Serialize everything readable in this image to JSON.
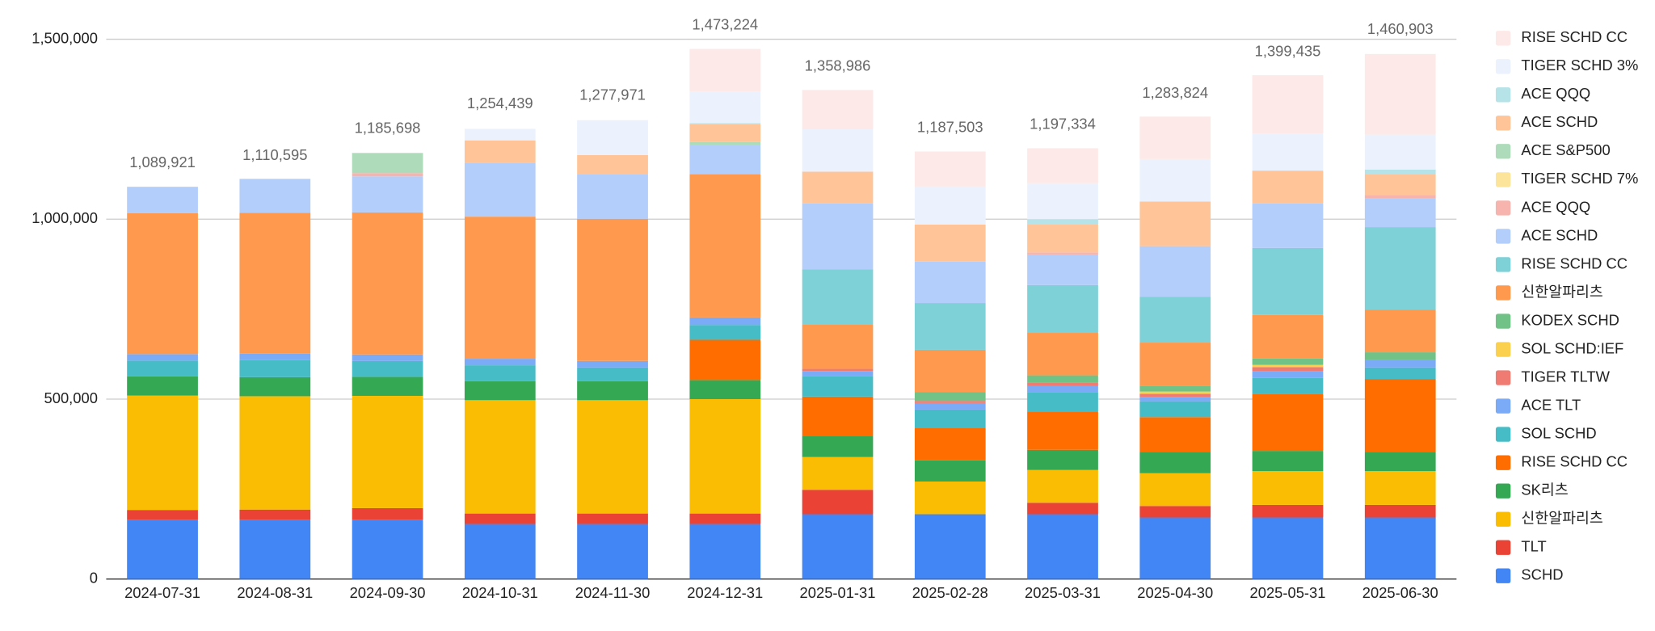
{
  "chart_data": {
    "type": "stacked_bar",
    "categories": [
      "2024-07-31",
      "2024-08-31",
      "2024-09-30",
      "2024-10-31",
      "2024-11-30",
      "2024-12-31",
      "2025-01-31",
      "2025-02-28",
      "2025-03-31",
      "2025-04-30",
      "2025-05-31",
      "2025-06-30"
    ],
    "series": [
      {
        "name": "SCHD",
        "color": "#4285f4",
        "values": [
          165000,
          165000,
          165000,
          153000,
          153000,
          153000,
          180000,
          180000,
          180000,
          171000,
          171000,
          171000
        ]
      },
      {
        "name": "TLT",
        "color": "#ea4335",
        "values": [
          27000,
          28000,
          32000,
          29000,
          29000,
          29000,
          68000,
          0,
          32000,
          32000,
          35000,
          35000
        ]
      },
      {
        "name": "신한알파리츠",
        "color": "#fbbc04",
        "values": [
          318000,
          315000,
          312000,
          315000,
          315000,
          318000,
          91000,
          91000,
          91000,
          91000,
          94000,
          94000
        ]
      },
      {
        "name": "SK리츠",
        "color": "#34a853",
        "values": [
          53000,
          53000,
          53000,
          53000,
          53000,
          53000,
          59000,
          59000,
          56000,
          59000,
          56000,
          53000
        ]
      },
      {
        "name": "RISE SCHD CC",
        "color": "#ff6d01",
        "values": [
          0,
          0,
          0,
          0,
          0,
          112000,
          109000,
          91000,
          106000,
          97000,
          159000,
          203000
        ]
      },
      {
        "name": "SOL SCHD",
        "color": "#46bdc6",
        "values": [
          44000,
          47000,
          44000,
          44000,
          38000,
          41000,
          56000,
          50000,
          53000,
          44000,
          44000,
          32000
        ]
      },
      {
        "name": "ACE TLT",
        "color": "#7baaf7",
        "values": [
          18000,
          18000,
          18000,
          18000,
          18000,
          21000,
          15000,
          18000,
          18000,
          12000,
          18000,
          21000
        ]
      },
      {
        "name": "TIGER TLTW",
        "color": "#f07b72",
        "values": [
          0,
          0,
          0,
          0,
          0,
          0,
          6000,
          6000,
          9000,
          9000,
          12000,
          0
        ]
      },
      {
        "name": "SOL SCHD:IEF",
        "color": "#fcd04f",
        "values": [
          0,
          0,
          0,
          0,
          0,
          0,
          0,
          0,
          0,
          6000,
          6000,
          0
        ]
      },
      {
        "name": "KODEX SCHD",
        "color": "#71c287",
        "values": [
          0,
          0,
          0,
          0,
          0,
          0,
          0,
          24000,
          21000,
          15000,
          18000,
          21000
        ]
      },
      {
        "name": "신한알파리츠",
        "color": "#ff994d",
        "values": [
          392000,
          392000,
          395000,
          395000,
          395000,
          398000,
          124000,
          118000,
          118000,
          121000,
          121000,
          118000
        ]
      },
      {
        "name": "RISE SCHD CC",
        "color": "#7ed1d7",
        "values": [
          0,
          0,
          0,
          0,
          0,
          0,
          153000,
          130000,
          133000,
          127000,
          186000,
          230000
        ]
      },
      {
        "name": "ACE SCHD",
        "color": "#b3cefb",
        "values": [
          73000,
          94000,
          100000,
          150000,
          124000,
          80000,
          183000,
          115000,
          85000,
          141000,
          124000,
          80000
        ]
      },
      {
        "name": "ACE QQQ",
        "color": "#f7b4ae",
        "values": [
          0,
          0,
          9000,
          0,
          0,
          0,
          0,
          0,
          6000,
          0,
          0,
          9000
        ]
      },
      {
        "name": "TIGER SCHD 7%",
        "color": "#fde49b",
        "values": [
          0,
          0,
          0,
          0,
          0,
          0,
          0,
          0,
          0,
          0,
          0,
          0
        ]
      },
      {
        "name": "ACE S&P500",
        "color": "#aedcba",
        "values": [
          0,
          0,
          56000,
          0,
          0,
          9000,
          0,
          0,
          0,
          0,
          0,
          0
        ]
      },
      {
        "name": "ACE SCHD",
        "color": "#ffc599",
        "values": [
          0,
          0,
          0,
          62000,
          53000,
          50000,
          88000,
          103000,
          77000,
          124000,
          91000,
          59000
        ]
      },
      {
        "name": "ACE QQQ",
        "color": "#b5e3e8",
        "values": [
          0,
          0,
          0,
          0,
          0,
          3000,
          0,
          0,
          15000,
          0,
          0,
          12000
        ]
      },
      {
        "name": "TIGER SCHD 3%",
        "color": "#ebf2fe",
        "values": [
          0,
          0,
          0,
          32000,
          97000,
          88000,
          118000,
          106000,
          100000,
          118000,
          103000,
          97000
        ]
      },
      {
        "name": "RISE SCHD CC",
        "color": "#fde9e7",
        "values": [
          0,
          0,
          0,
          0,
          0,
          118000,
          109000,
          97000,
          97000,
          118000,
          162000,
          224000
        ]
      }
    ],
    "totals": [
      1089921,
      1110595,
      1185698,
      1254439,
      1277971,
      1473224,
      1358986,
      1187503,
      1197334,
      1283824,
      1399435,
      1460903
    ],
    "total_labels": [
      "1,089,921",
      "1,110,595",
      "1,185,698",
      "1,254,439",
      "1,277,971",
      "1,473,224",
      "1,358,986",
      "1,187,503",
      "1,197,334",
      "1,283,824",
      "1,399,435",
      "1,460,903"
    ],
    "ylim": [
      0,
      1500000
    ],
    "yticks": [
      0,
      {
        "value": 500000,
        "label": "500,000"
      },
      {
        "value": 1000000,
        "label": "1,000,000"
      },
      {
        "value": 1500000,
        "label": "1,500,000"
      }
    ],
    "grid": true,
    "legend": "right"
  }
}
